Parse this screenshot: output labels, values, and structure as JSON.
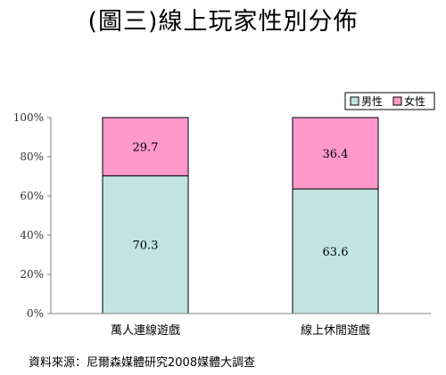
{
  "title": "(圖三)線上玩家性別分佈",
  "source": "資料來源：尼爾森媒體研究2008媒體大調查",
  "colors": {
    "male": "#c1e3e3",
    "female": "#ff99cc",
    "border": "#000000",
    "axis": "#808080"
  },
  "chart_data": {
    "type": "bar",
    "stacked": true,
    "categories": [
      "萬人連線遊戲",
      "線上休閒遊戲"
    ],
    "series": [
      {
        "name": "男性",
        "values": [
          70.3,
          63.6
        ]
      },
      {
        "name": "女性",
        "values": [
          29.7,
          36.4
        ]
      }
    ],
    "data_labels": [
      [
        "70.3",
        "63.6"
      ],
      [
        "29.7",
        "36.4"
      ]
    ],
    "y_ticks": [
      "0%",
      "20%",
      "40%",
      "60%",
      "80%",
      "100%"
    ],
    "ylim": [
      0,
      100
    ],
    "grid": false,
    "legend": "top-right"
  }
}
